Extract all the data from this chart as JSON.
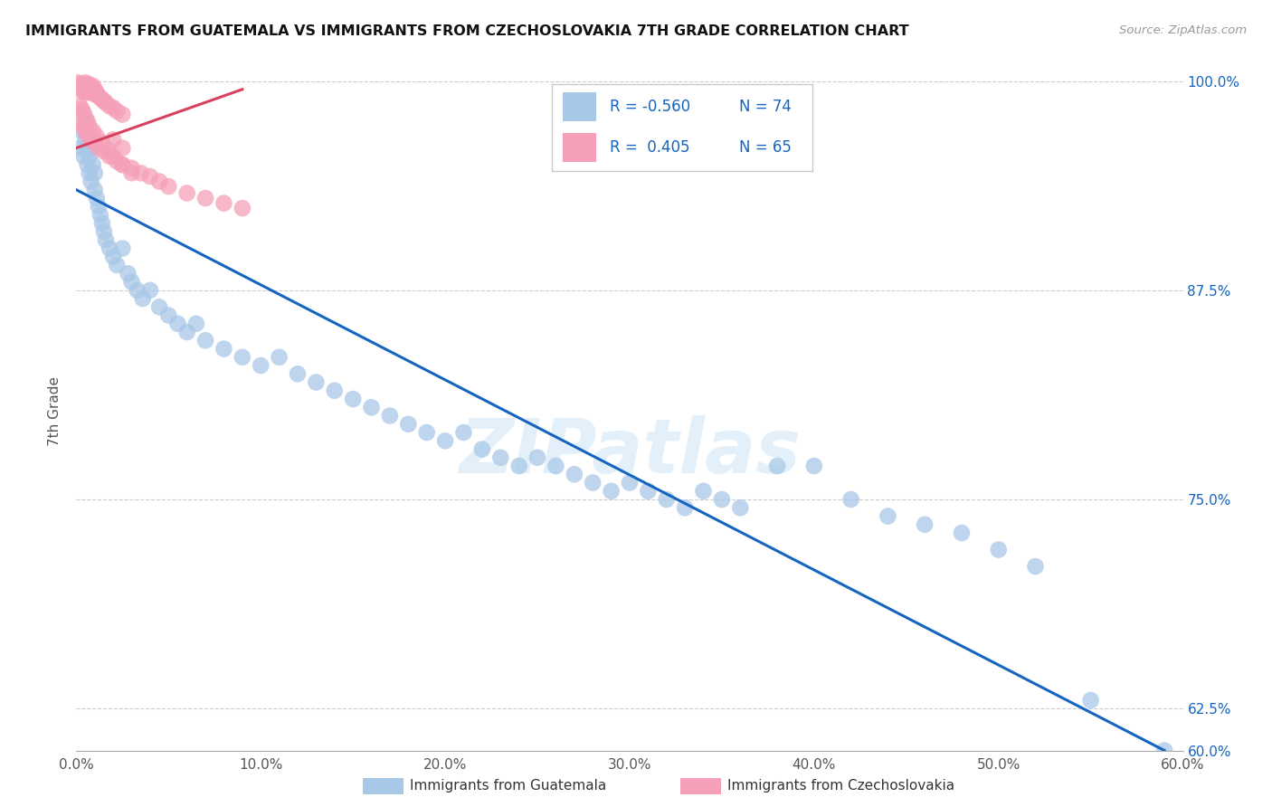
{
  "title": "IMMIGRANTS FROM GUATEMALA VS IMMIGRANTS FROM CZECHOSLOVAKIA 7TH GRADE CORRELATION CHART",
  "source": "Source: ZipAtlas.com",
  "ylabel": "7th Grade",
  "xlim": [
    0.0,
    0.6
  ],
  "ylim": [
    0.6,
    1.005
  ],
  "xtick_labels": [
    "0.0%",
    "",
    "10.0%",
    "",
    "20.0%",
    "",
    "30.0%",
    "",
    "40.0%",
    "",
    "50.0%",
    "",
    "60.0%"
  ],
  "xtick_vals": [
    0.0,
    0.05,
    0.1,
    0.15,
    0.2,
    0.25,
    0.3,
    0.35,
    0.4,
    0.45,
    0.5,
    0.55,
    0.6
  ],
  "ytick_vals": [
    0.6,
    0.625,
    0.75,
    0.875,
    1.0
  ],
  "ytick_labels": [
    "60.0%",
    "62.5%",
    "75.0%",
    "87.5%",
    "100.0%"
  ],
  "legend_r_blue": "R = -0.560",
  "legend_n_blue": "N = 74",
  "legend_r_pink": "R =  0.405",
  "legend_n_pink": "N = 65",
  "legend_label_blue": "Immigrants from Guatemala",
  "legend_label_pink": "Immigrants from Czechoslovakia",
  "blue_color": "#a8c8e8",
  "pink_color": "#f5a0b8",
  "blue_line_color": "#1565c0",
  "pink_line_color": "#d84060",
  "watermark": "ZIPatlas",
  "blue_scatter_x": [
    0.002,
    0.003,
    0.004,
    0.005,
    0.005,
    0.006,
    0.006,
    0.007,
    0.007,
    0.008,
    0.008,
    0.009,
    0.01,
    0.01,
    0.011,
    0.012,
    0.013,
    0.014,
    0.015,
    0.016,
    0.018,
    0.02,
    0.022,
    0.025,
    0.028,
    0.03,
    0.033,
    0.036,
    0.04,
    0.045,
    0.05,
    0.055,
    0.06,
    0.065,
    0.07,
    0.08,
    0.09,
    0.1,
    0.11,
    0.12,
    0.13,
    0.14,
    0.15,
    0.16,
    0.17,
    0.18,
    0.19,
    0.2,
    0.21,
    0.22,
    0.23,
    0.24,
    0.25,
    0.26,
    0.27,
    0.28,
    0.29,
    0.3,
    0.31,
    0.32,
    0.33,
    0.34,
    0.35,
    0.36,
    0.38,
    0.4,
    0.42,
    0.44,
    0.46,
    0.48,
    0.5,
    0.52,
    0.55,
    0.59
  ],
  "blue_scatter_y": [
    0.96,
    0.97,
    0.955,
    0.965,
    0.975,
    0.95,
    0.96,
    0.945,
    0.955,
    0.94,
    0.96,
    0.95,
    0.935,
    0.945,
    0.93,
    0.925,
    0.92,
    0.915,
    0.91,
    0.905,
    0.9,
    0.895,
    0.89,
    0.9,
    0.885,
    0.88,
    0.875,
    0.87,
    0.875,
    0.865,
    0.86,
    0.855,
    0.85,
    0.855,
    0.845,
    0.84,
    0.835,
    0.83,
    0.835,
    0.825,
    0.82,
    0.815,
    0.81,
    0.805,
    0.8,
    0.795,
    0.79,
    0.785,
    0.79,
    0.78,
    0.775,
    0.77,
    0.775,
    0.77,
    0.765,
    0.76,
    0.755,
    0.76,
    0.755,
    0.75,
    0.745,
    0.755,
    0.75,
    0.745,
    0.77,
    0.77,
    0.75,
    0.74,
    0.735,
    0.73,
    0.72,
    0.71,
    0.63,
    0.6
  ],
  "pink_scatter_x": [
    0.001,
    0.002,
    0.002,
    0.003,
    0.003,
    0.004,
    0.004,
    0.005,
    0.005,
    0.005,
    0.006,
    0.006,
    0.007,
    0.007,
    0.008,
    0.008,
    0.009,
    0.009,
    0.01,
    0.01,
    0.011,
    0.012,
    0.013,
    0.014,
    0.015,
    0.016,
    0.018,
    0.02,
    0.022,
    0.025,
    0.003,
    0.004,
    0.005,
    0.006,
    0.008,
    0.01,
    0.012,
    0.015,
    0.018,
    0.022,
    0.025,
    0.03,
    0.035,
    0.04,
    0.045,
    0.05,
    0.06,
    0.07,
    0.08,
    0.09,
    0.002,
    0.003,
    0.004,
    0.005,
    0.006,
    0.007,
    0.009,
    0.011,
    0.014,
    0.017,
    0.02,
    0.025,
    0.03,
    0.02,
    0.025
  ],
  "pink_scatter_y": [
    0.999,
    0.998,
    0.996,
    0.997,
    0.994,
    0.998,
    0.995,
    0.999,
    0.996,
    0.993,
    0.997,
    0.994,
    0.998,
    0.995,
    0.996,
    0.993,
    0.997,
    0.994,
    0.995,
    0.992,
    0.993,
    0.991,
    0.99,
    0.989,
    0.988,
    0.987,
    0.985,
    0.984,
    0.982,
    0.98,
    0.975,
    0.972,
    0.97,
    0.968,
    0.965,
    0.963,
    0.96,
    0.958,
    0.955,
    0.952,
    0.95,
    0.948,
    0.945,
    0.943,
    0.94,
    0.937,
    0.933,
    0.93,
    0.927,
    0.924,
    0.985,
    0.983,
    0.981,
    0.978,
    0.976,
    0.973,
    0.97,
    0.967,
    0.963,
    0.959,
    0.955,
    0.95,
    0.945,
    0.965,
    0.96
  ],
  "blue_line_x": [
    0.0,
    0.59
  ],
  "blue_line_y": [
    0.935,
    0.6
  ],
  "pink_line_x": [
    0.0,
    0.09
  ],
  "pink_line_y": [
    0.96,
    0.995
  ]
}
